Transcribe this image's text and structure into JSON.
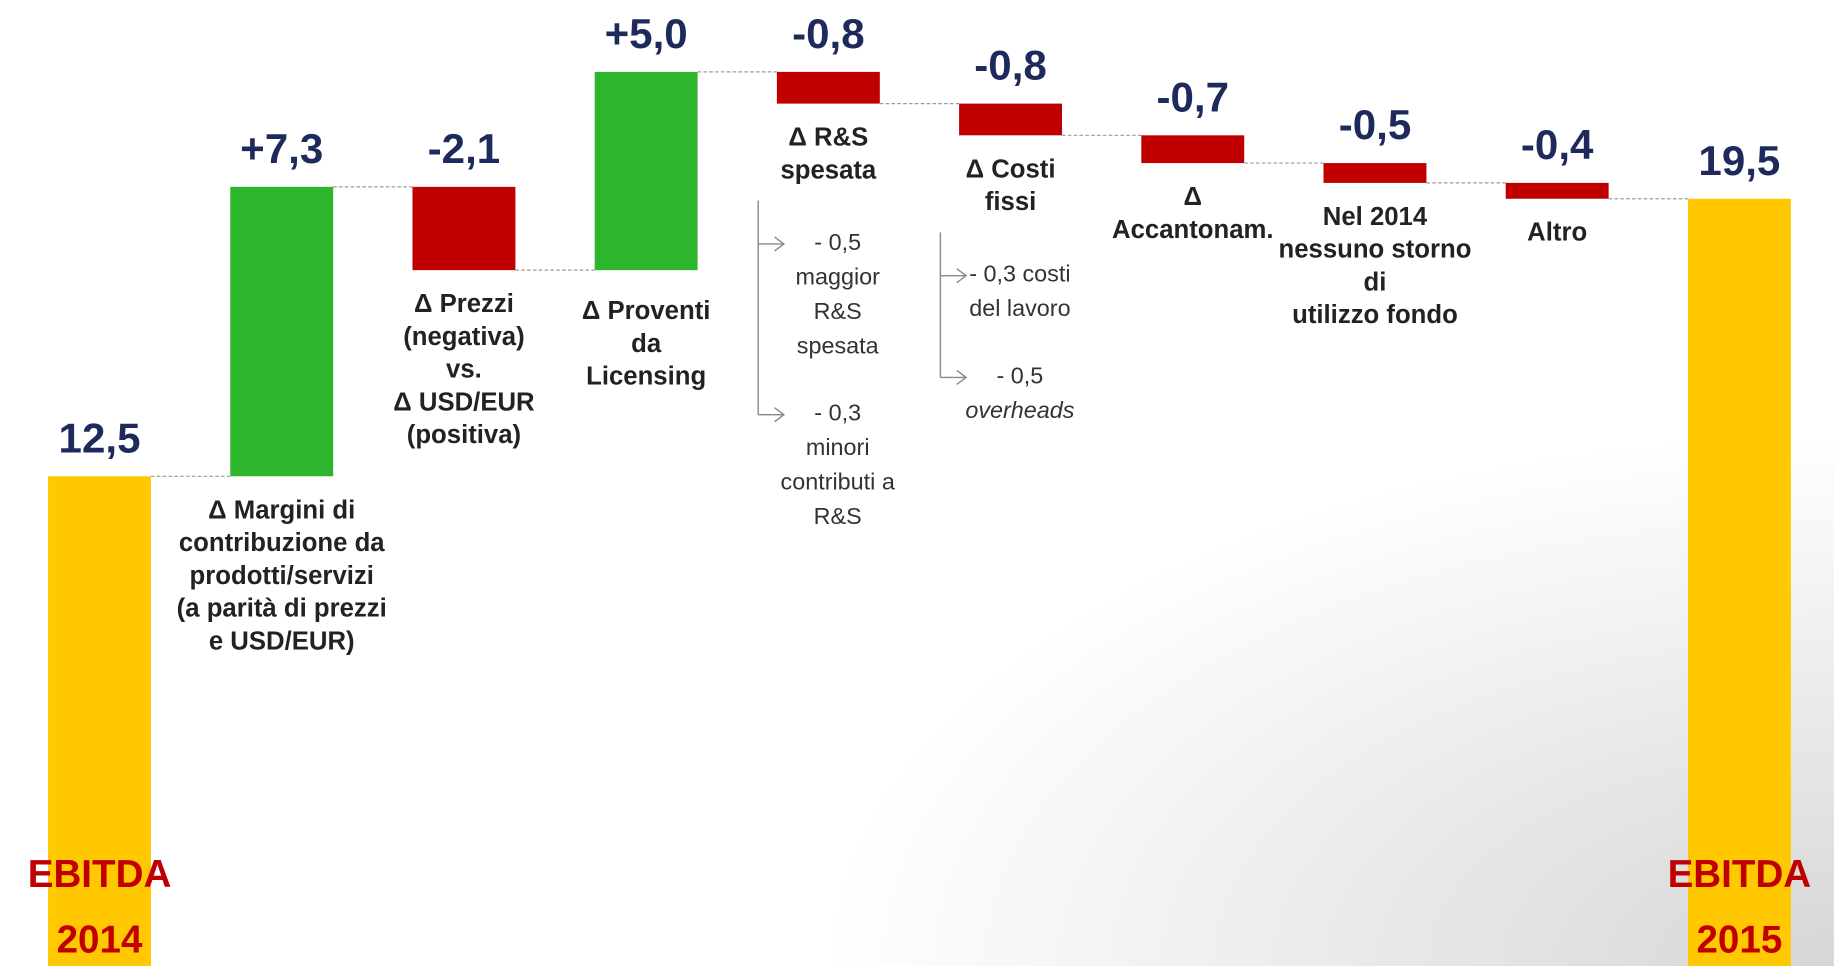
{
  "chart_data": {
    "type": "waterfall",
    "categories": [
      "EBITDA\n2014",
      "Δ Margini di\ncontribuzione da\nprodotti/servizi\n(a parità di prezzi\ne USD/EUR)",
      "Δ Prezzi\n(negativa)\nvs.\nΔ USD/EUR\n(positiva)",
      "Δ Proventi\nda\nLicensing",
      "Δ R&S\nspesata",
      "Δ Costi\nfissi",
      "Δ\nAccantonam.",
      "Nel 2014\nnessuno storno\ndi\nutilizzo fondo",
      "Altro",
      "EBITDA\n2015"
    ],
    "values": [
      12.5,
      7.3,
      -2.1,
      5.0,
      -0.8,
      -0.8,
      -0.7,
      -0.5,
      -0.4,
      19.5
    ],
    "value_labels": [
      "12,5",
      "+7,3",
      "-2,1",
      "+5,0",
      "-0,8",
      "-0,8",
      "-0,7",
      "-0,5",
      "-0,4",
      "19,5"
    ],
    "colors": {
      "total": "#FFC800",
      "increase": "#2DB52D",
      "decrease": "#C00000"
    },
    "annotations": [
      null,
      null,
      null,
      null,
      [
        {
          "text": "- 0,5\nmaggior\nR&S\nspesata"
        },
        {
          "text": "- 0,3\nminori\ncontributi a\nR&S"
        }
      ],
      [
        {
          "text": "- 0,3 costi\ndel lavoro"
        },
        {
          "text": "- 0,5\noverheads",
          "style": "italic"
        }
      ],
      null,
      null,
      null,
      null
    ]
  }
}
